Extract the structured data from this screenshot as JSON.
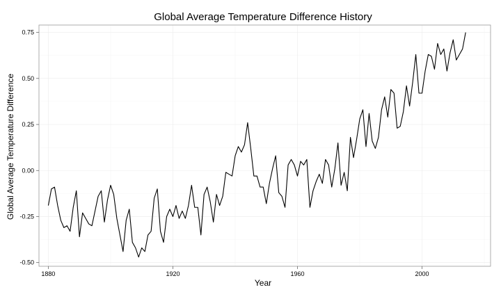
{
  "chart_data": {
    "type": "line",
    "title": "Global Average Temperature Difference History",
    "xlabel": "Year",
    "ylabel": "Global Average Temperature Difference",
    "xlim": [
      1877,
      2022
    ],
    "ylim": [
      -0.52,
      0.79
    ],
    "x_ticks": [
      1880,
      1920,
      1960,
      2000
    ],
    "x_tick_labels": [
      "1880",
      "1920",
      "1960",
      "2000"
    ],
    "y_ticks": [
      -0.5,
      -0.25,
      0.0,
      0.25,
      0.5,
      0.75
    ],
    "y_tick_labels": [
      "-0.50",
      "-0.25",
      "0.00",
      "0.25",
      "0.50",
      "0.75"
    ],
    "grid": true,
    "legend": "none",
    "line_color": "#000000",
    "series": [
      {
        "x": [
          1880,
          1881,
          1882,
          1883,
          1884,
          1885,
          1886,
          1887,
          1888,
          1889,
          1890,
          1891,
          1892,
          1893,
          1894,
          1895,
          1896,
          1897,
          1898,
          1899,
          1900,
          1901,
          1902,
          1903,
          1904,
          1905,
          1906,
          1907,
          1908,
          1909,
          1910,
          1911,
          1912,
          1913,
          1914,
          1915,
          1916,
          1917,
          1918,
          1919,
          1920,
          1921,
          1922,
          1923,
          1924,
          1925,
          1926,
          1927,
          1928,
          1929,
          1930,
          1931,
          1932,
          1933,
          1934,
          1935,
          1936,
          1937,
          1938,
          1939,
          1940,
          1941,
          1942,
          1943,
          1944,
          1945,
          1946,
          1947,
          1948,
          1949,
          1950,
          1951,
          1952,
          1953,
          1954,
          1955,
          1956,
          1957,
          1958,
          1959,
          1960,
          1961,
          1962,
          1963,
          1964,
          1965,
          1966,
          1967,
          1968,
          1969,
          1970,
          1971,
          1972,
          1973,
          1974,
          1975,
          1976,
          1977,
          1978,
          1979,
          1980,
          1981,
          1982,
          1983,
          1984,
          1985,
          1986,
          1987,
          1988,
          1989,
          1990,
          1991,
          1992,
          1993,
          1994,
          1995,
          1996,
          1997,
          1998,
          1999,
          2000,
          2001,
          2002,
          2003,
          2004,
          2005,
          2006,
          2007,
          2008,
          2009,
          2010,
          2011,
          2012,
          2013,
          2014
        ],
        "values": [
          -0.19,
          -0.1,
          -0.09,
          -0.19,
          -0.27,
          -0.31,
          -0.3,
          -0.33,
          -0.2,
          -0.11,
          -0.36,
          -0.23,
          -0.26,
          -0.29,
          -0.3,
          -0.22,
          -0.14,
          -0.11,
          -0.28,
          -0.16,
          -0.08,
          -0.13,
          -0.26,
          -0.35,
          -0.44,
          -0.27,
          -0.21,
          -0.39,
          -0.42,
          -0.47,
          -0.42,
          -0.44,
          -0.35,
          -0.33,
          -0.15,
          -0.1,
          -0.33,
          -0.39,
          -0.25,
          -0.21,
          -0.25,
          -0.19,
          -0.26,
          -0.22,
          -0.26,
          -0.19,
          -0.08,
          -0.2,
          -0.2,
          -0.35,
          -0.13,
          -0.09,
          -0.17,
          -0.28,
          -0.13,
          -0.19,
          -0.14,
          -0.01,
          -0.02,
          -0.03,
          0.08,
          0.13,
          0.1,
          0.14,
          0.26,
          0.12,
          -0.03,
          -0.03,
          -0.09,
          -0.09,
          -0.18,
          -0.07,
          0.01,
          0.08,
          -0.12,
          -0.14,
          -0.2,
          0.03,
          0.06,
          0.03,
          -0.03,
          0.05,
          0.03,
          0.06,
          -0.2,
          -0.11,
          -0.06,
          -0.02,
          -0.07,
          0.06,
          0.03,
          -0.09,
          0.01,
          0.15,
          -0.08,
          -0.01,
          -0.11,
          0.18,
          0.07,
          0.17,
          0.28,
          0.33,
          0.13,
          0.31,
          0.16,
          0.12,
          0.18,
          0.33,
          0.4,
          0.29,
          0.44,
          0.42,
          0.23,
          0.24,
          0.32,
          0.46,
          0.35,
          0.48,
          0.63,
          0.42,
          0.42,
          0.54,
          0.63,
          0.62,
          0.55,
          0.69,
          0.63,
          0.66,
          0.54,
          0.64,
          0.71,
          0.6,
          0.63,
          0.66,
          0.75
        ]
      }
    ]
  }
}
